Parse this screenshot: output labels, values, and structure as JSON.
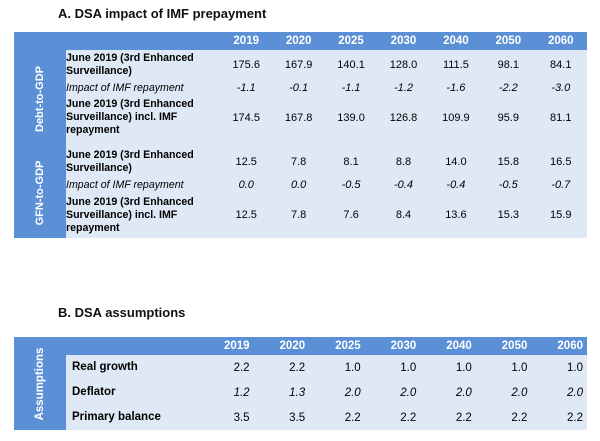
{
  "section_a": {
    "title": "A.  DSA impact of IMF prepayment",
    "years": [
      "2019",
      "2020",
      "2025",
      "2030",
      "2040",
      "2050",
      "2060"
    ],
    "groups": [
      {
        "name": "Debt-to-GDP",
        "rows": [
          {
            "label": "June 2019 (3rd Enhanced Surveillance)",
            "style": "bold",
            "values": [
              "175.6",
              "167.9",
              "140.1",
              "128.0",
              "111.5",
              "98.1",
              "84.1"
            ]
          },
          {
            "label": "Impact of IMF repayment",
            "style": "italic",
            "values": [
              "-1.1",
              "-0.1",
              "-1.1",
              "-1.2",
              "-1.6",
              "-2.2",
              "-3.0"
            ]
          },
          {
            "label": "June 2019 (3rd Enhanced Surveillance) incl. IMF repayment",
            "style": "bold",
            "values": [
              "174.5",
              "167.8",
              "139.0",
              "126.8",
              "109.9",
              "95.9",
              "81.1"
            ]
          }
        ]
      },
      {
        "name": "GFN-to-GDP",
        "rows": [
          {
            "label": "June 2019 (3rd Enhanced Surveillance)",
            "style": "bold",
            "values": [
              "12.5",
              "7.8",
              "8.1",
              "8.8",
              "14.0",
              "15.8",
              "16.5"
            ]
          },
          {
            "label": "Impact of IMF repayment",
            "style": "italic",
            "values": [
              "0.0",
              "0.0",
              "-0.5",
              "-0.4",
              "-0.4",
              "-0.5",
              "-0.7"
            ]
          },
          {
            "label": "June 2019 (3rd Enhanced Surveillance) incl. IMF repayment",
            "style": "bold",
            "values": [
              "12.5",
              "7.8",
              "7.6",
              "8.4",
              "13.6",
              "15.3",
              "15.9"
            ]
          }
        ]
      }
    ]
  },
  "section_b": {
    "title": "B.  DSA assumptions",
    "years": [
      "2019",
      "2020",
      "2025",
      "2030",
      "2040",
      "2050",
      "2060"
    ],
    "group_name": "Assumptions",
    "rows": [
      {
        "label": "Real growth",
        "italic": false,
        "values": [
          "2.2",
          "2.2",
          "1.0",
          "1.0",
          "1.0",
          "1.0",
          "1.0"
        ]
      },
      {
        "label": "Deflator",
        "italic": true,
        "values": [
          "1.2",
          "1.3",
          "2.0",
          "2.0",
          "2.0",
          "2.0",
          "2.0"
        ]
      },
      {
        "label": "Primary balance",
        "italic": false,
        "values": [
          "3.5",
          "3.5",
          "2.2",
          "2.2",
          "2.2",
          "2.2",
          "2.2"
        ]
      }
    ]
  },
  "colors": {
    "header_blue": "#5b8fd6",
    "row_light": "#dfe8f5"
  }
}
